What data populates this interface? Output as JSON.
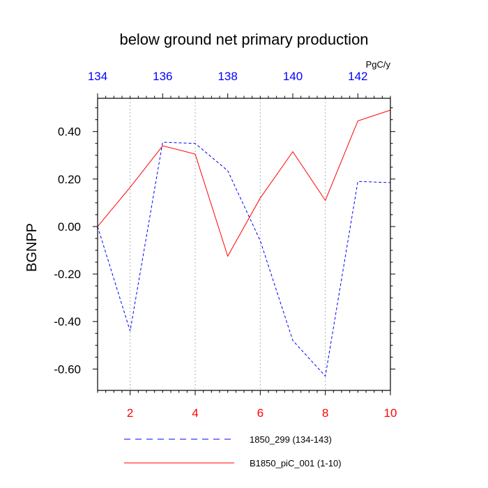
{
  "chart_data": {
    "type": "line",
    "title": "below ground net primary production",
    "ylabel": "BGNPP",
    "units": "PgC/y",
    "xlim": [
      1,
      10
    ],
    "ylim": [
      -0.69,
      0.54
    ],
    "bottom_axis": {
      "color": "#ff0000",
      "ticks": [
        2,
        4,
        6,
        8,
        10
      ],
      "tick_labels": [
        "2",
        "4",
        "6",
        "8",
        "10"
      ]
    },
    "top_axis": {
      "color": "#0000ff",
      "ticks": [
        134,
        136,
        138,
        140,
        142
      ],
      "tick_labels": [
        "134",
        "136",
        "138",
        "140",
        "142"
      ],
      "offset": 133
    },
    "left_axis": {
      "ticks": [
        0.4,
        0.2,
        0,
        -0.2,
        -0.4,
        -0.6
      ],
      "tick_labels": [
        "0.40",
        "0.20",
        "0.00",
        "-0.20",
        "-0.40",
        "-0.60"
      ]
    },
    "grid": "vertical dotted",
    "legend_position": "bottom",
    "series": [
      {
        "name": "1850_299 (134-143)",
        "color": "#0000ff",
        "dash": "dashed",
        "x": [
          134,
          135,
          136,
          137,
          138,
          139,
          140,
          141,
          142,
          143
        ],
        "values": [
          0.0,
          -0.44,
          0.355,
          0.35,
          0.235,
          -0.06,
          -0.48,
          -0.63,
          0.19,
          0.185
        ]
      },
      {
        "name": "B1850_piC_001 (1-10)",
        "color": "#ff0000",
        "dash": "solid",
        "x": [
          1,
          2,
          3,
          4,
          5,
          6,
          7,
          8,
          9,
          10
        ],
        "values": [
          0.0,
          0.165,
          0.34,
          0.305,
          -0.125,
          0.12,
          0.315,
          0.11,
          0.445,
          0.49
        ]
      }
    ]
  }
}
